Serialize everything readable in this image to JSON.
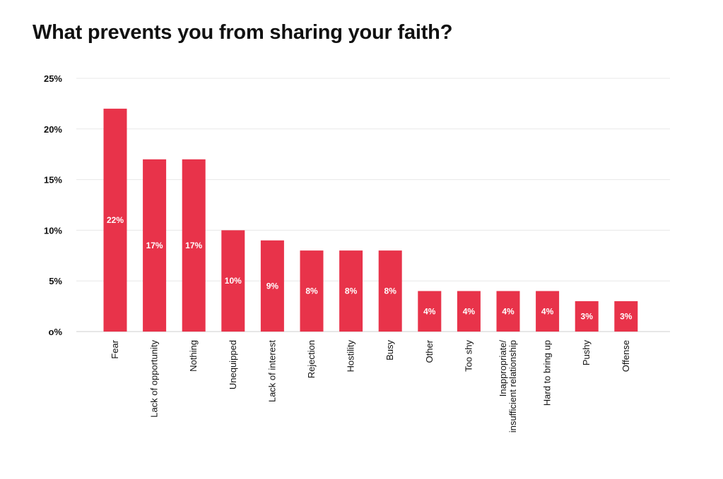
{
  "chart_data": {
    "type": "bar",
    "title": "What prevents you from sharing your faith?",
    "xlabel": "",
    "ylabel": "",
    "ylim": [
      0,
      25
    ],
    "yticks": [
      0,
      5,
      10,
      15,
      20,
      25
    ],
    "ytick_labels": [
      "o%",
      "5%",
      "10%",
      "15%",
      "20%",
      "25%"
    ],
    "grid": true,
    "legend": "none",
    "bar_color": "#e8334a",
    "categories": [
      [
        "Fear"
      ],
      [
        "Lack of opportunity"
      ],
      [
        "Nothing"
      ],
      [
        "Unequipped"
      ],
      [
        "Lack of interest"
      ],
      [
        "Rejection"
      ],
      [
        "Hostility"
      ],
      [
        "Busy"
      ],
      [
        "Other"
      ],
      [
        "Too shy"
      ],
      [
        "Inappropriate/",
        "insufficient relationship"
      ],
      [
        "Hard to bring up"
      ],
      [
        "Pushy"
      ],
      [
        "Offense"
      ]
    ],
    "values": [
      22,
      17,
      17,
      10,
      9,
      8,
      8,
      8,
      4,
      4,
      4,
      4,
      3,
      3
    ],
    "data_labels": [
      "22%",
      "17%",
      "17%",
      "10%",
      "9%",
      "8%",
      "8%",
      "8%",
      "4%",
      "4%",
      "4%",
      "4%",
      "3%",
      "3%"
    ]
  }
}
